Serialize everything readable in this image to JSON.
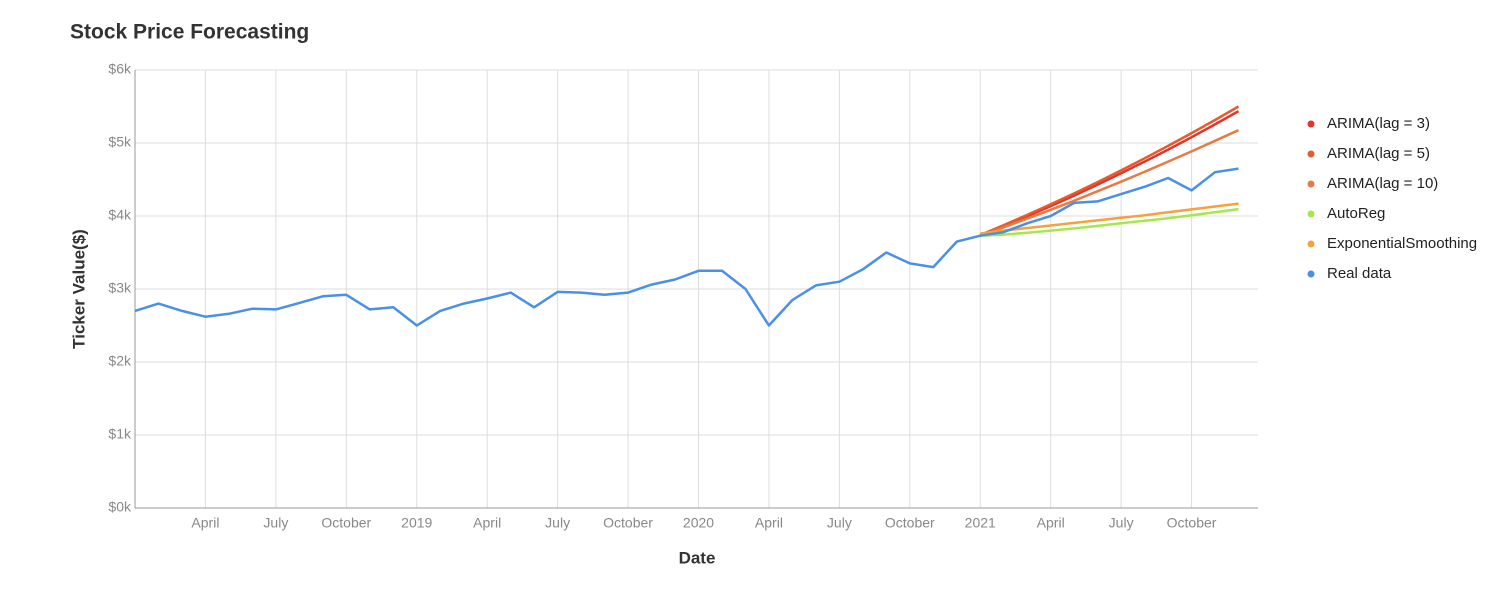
{
  "chart_data": {
    "type": "line",
    "title": "Stock Price Forecasting",
    "x_label": "Date",
    "y_label": "Ticker Value($)",
    "x": [
      "2018-01",
      "2018-02",
      "2018-03",
      "2018-04",
      "2018-05",
      "2018-06",
      "2018-07",
      "2018-08",
      "2018-09",
      "2018-10",
      "2018-11",
      "2018-12",
      "2019-01",
      "2019-02",
      "2019-03",
      "2019-04",
      "2019-05",
      "2019-06",
      "2019-07",
      "2019-08",
      "2019-09",
      "2019-10",
      "2019-11",
      "2019-12",
      "2020-01",
      "2020-02",
      "2020-03",
      "2020-04",
      "2020-05",
      "2020-06",
      "2020-07",
      "2020-08",
      "2020-09",
      "2020-10",
      "2020-11",
      "2020-12",
      "2021-01",
      "2021-02",
      "2021-03",
      "2021-04",
      "2021-05",
      "2021-06",
      "2021-07",
      "2021-08",
      "2021-09",
      "2021-10",
      "2021-11",
      "2021-12"
    ],
    "xlim": [
      "2018-01",
      "2022-01"
    ],
    "xticks": [
      {
        "value": "2018-04",
        "label": "April"
      },
      {
        "value": "2018-07",
        "label": "July"
      },
      {
        "value": "2018-10",
        "label": "October"
      },
      {
        "value": "2019-01",
        "label": "2019"
      },
      {
        "value": "2019-04",
        "label": "April"
      },
      {
        "value": "2019-07",
        "label": "July"
      },
      {
        "value": "2019-10",
        "label": "October"
      },
      {
        "value": "2020-01",
        "label": "2020"
      },
      {
        "value": "2020-04",
        "label": "April"
      },
      {
        "value": "2020-07",
        "label": "July"
      },
      {
        "value": "2020-10",
        "label": "October"
      },
      {
        "value": "2021-01",
        "label": "2021"
      },
      {
        "value": "2021-04",
        "label": "April"
      },
      {
        "value": "2021-07",
        "label": "July"
      },
      {
        "value": "2021-10",
        "label": "October"
      }
    ],
    "ylim": [
      0,
      6000
    ],
    "yticks": [
      {
        "value": 0,
        "label": "$0k"
      },
      {
        "value": 1000,
        "label": "$1k"
      },
      {
        "value": 2000,
        "label": "$2k"
      },
      {
        "value": 3000,
        "label": "$3k"
      },
      {
        "value": 4000,
        "label": "$4k"
      },
      {
        "value": 5000,
        "label": "$5k"
      },
      {
        "value": 6000,
        "label": "$6k"
      }
    ],
    "grid": true,
    "legend": "right",
    "series": [
      {
        "name": "ARIMA(lag = 3)",
        "color": "#e3342a",
        "values": [
          null,
          null,
          null,
          null,
          null,
          null,
          null,
          null,
          null,
          null,
          null,
          null,
          null,
          null,
          null,
          null,
          null,
          null,
          null,
          null,
          null,
          null,
          null,
          null,
          null,
          null,
          null,
          null,
          null,
          null,
          null,
          null,
          null,
          null,
          null,
          null,
          3730,
          3860,
          3995,
          4135,
          4280,
          4430,
          4585,
          4745,
          4910,
          5080,
          5255,
          5435
        ]
      },
      {
        "name": "ARIMA(lag = 5)",
        "color": "#e85a2c",
        "values": [
          null,
          null,
          null,
          null,
          null,
          null,
          null,
          null,
          null,
          null,
          null,
          null,
          null,
          null,
          null,
          null,
          null,
          null,
          null,
          null,
          null,
          null,
          null,
          null,
          null,
          null,
          null,
          null,
          null,
          null,
          null,
          null,
          null,
          null,
          null,
          null,
          3740,
          3875,
          4015,
          4160,
          4310,
          4465,
          4625,
          4790,
          4960,
          5135,
          5315,
          5500
        ]
      },
      {
        "name": "ARIMA(lag = 10)",
        "color": "#e97a45",
        "values": [
          null,
          null,
          null,
          null,
          null,
          null,
          null,
          null,
          null,
          null,
          null,
          null,
          null,
          null,
          null,
          null,
          null,
          null,
          null,
          null,
          null,
          null,
          null,
          null,
          null,
          null,
          null,
          null,
          null,
          null,
          null,
          null,
          null,
          null,
          null,
          null,
          3730,
          3845,
          3965,
          4085,
          4210,
          4340,
          4470,
          4605,
          4745,
          4885,
          5030,
          5175
        ]
      },
      {
        "name": "AutoReg",
        "color": "#a5e84b",
        "values": [
          null,
          null,
          null,
          null,
          null,
          null,
          null,
          null,
          null,
          null,
          null,
          null,
          null,
          null,
          null,
          null,
          null,
          null,
          null,
          null,
          null,
          null,
          null,
          null,
          null,
          null,
          null,
          null,
          null,
          null,
          null,
          null,
          null,
          null,
          null,
          null,
          3730,
          3745,
          3770,
          3800,
          3830,
          3865,
          3900,
          3935,
          3970,
          4010,
          4050,
          4095
        ]
      },
      {
        "name": "ExponentialSmoothing",
        "color": "#f4a23b",
        "values": [
          null,
          null,
          null,
          null,
          null,
          null,
          null,
          null,
          null,
          null,
          null,
          null,
          null,
          null,
          null,
          null,
          null,
          null,
          null,
          null,
          null,
          null,
          null,
          null,
          null,
          null,
          null,
          null,
          null,
          null,
          null,
          null,
          null,
          null,
          null,
          null,
          3760,
          3800,
          3835,
          3870,
          3905,
          3940,
          3975,
          4010,
          4050,
          4090,
          4130,
          4170
        ]
      },
      {
        "name": "Real data",
        "color": "#4a90e8",
        "values": [
          2700,
          2800,
          2700,
          2620,
          2660,
          2730,
          2720,
          2810,
          2900,
          2920,
          2720,
          2750,
          2500,
          2700,
          2800,
          2870,
          2950,
          2750,
          2960,
          2950,
          2920,
          2950,
          3060,
          3130,
          3250,
          3250,
          3000,
          2500,
          2850,
          3050,
          3100,
          3270,
          3500,
          3350,
          3300,
          3650,
          3730,
          3780,
          3900,
          4000,
          4180,
          4200,
          4300,
          4400,
          4520,
          4350,
          4600,
          4650
        ]
      }
    ]
  }
}
